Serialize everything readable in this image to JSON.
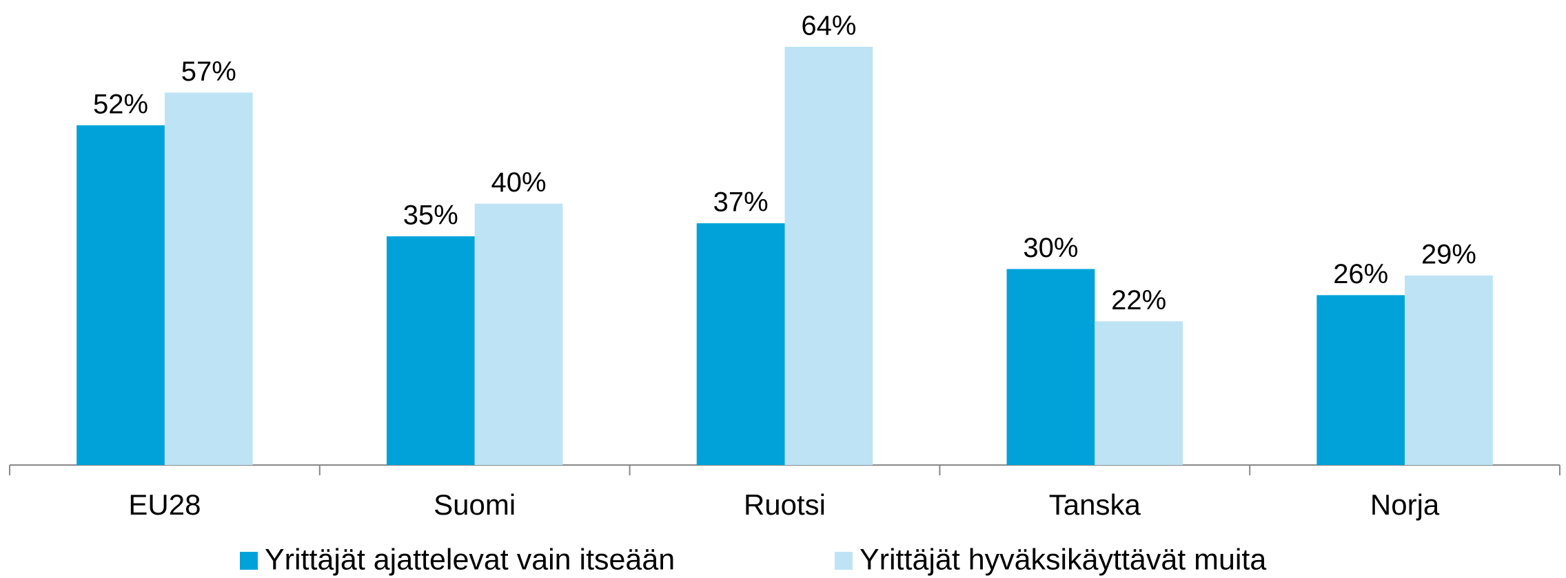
{
  "chart_data": {
    "type": "bar",
    "categories": [
      "EU28",
      "Suomi",
      "Ruotsi",
      "Tanska",
      "Norja"
    ],
    "series": [
      {
        "name": "Yrittäjät ajattelevat vain itseään",
        "color": "#00a3d9",
        "values": [
          52,
          35,
          37,
          30,
          26
        ],
        "value_labels": [
          "52%",
          "35%",
          "37%",
          "30%",
          "26%"
        ]
      },
      {
        "name": "Yrittäjät hyväksikäyttävät muita",
        "color": "#bee3f5",
        "values": [
          57,
          40,
          64,
          22,
          29
        ],
        "value_labels": [
          "57%",
          "40%",
          "64%",
          "22%",
          "29%"
        ]
      }
    ],
    "legend": "bottom"
  }
}
